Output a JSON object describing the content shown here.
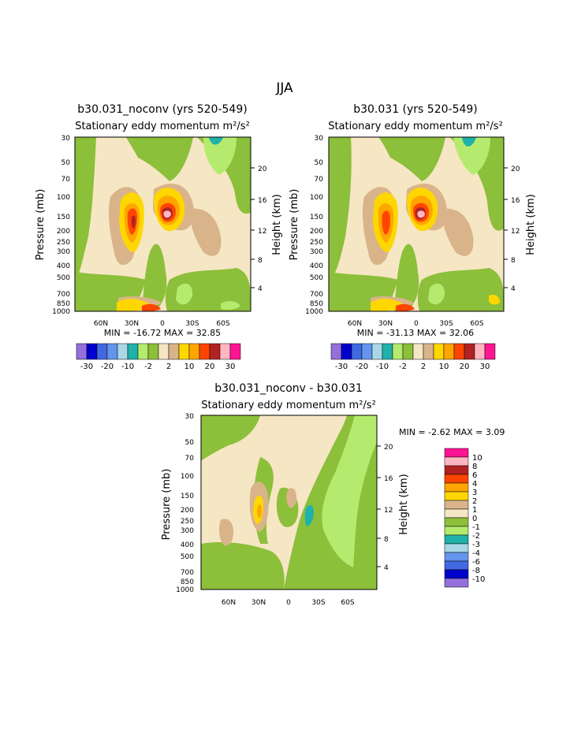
{
  "page_title": "JJA",
  "colors": {
    "fill_palette": {
      "purple": "#9370db",
      "navy": "#0000cd",
      "blue": "#4169e1",
      "lightblue": "#6495ed",
      "paleblue": "#a8d8e8",
      "teal": "#20b2aa",
      "lightgreen": "#b4eb6e",
      "green": "#8cbf3a",
      "cream": "#f5e6c4",
      "tan": "#d9b48a",
      "yellow": "#ffd700",
      "orange": "#ffa500",
      "darkorange": "#ff4500",
      "red": "#b22222",
      "pink": "#ffb6c1",
      "magenta": "#ff1493"
    }
  },
  "chart_data": [
    {
      "type": "contour",
      "title": "b30.031_noconv (yrs 520-549)",
      "subtitle": "Stationary eddy momentum m²/s²",
      "ylabel_left": "Pressure (mb)",
      "ylabel_right": "Height (km)",
      "x_ticks": [
        "60N",
        "30N",
        "0",
        "30S",
        "60S"
      ],
      "y_ticks_pressure": [
        "30",
        "50",
        "70",
        "100",
        "150",
        "200",
        "250",
        "300",
        "400",
        "500",
        "700",
        "850",
        "1000"
      ],
      "y_ticks_height": [
        "20",
        "16",
        "12",
        "8",
        "4"
      ],
      "min_max": "MIN = -16.72 MAX = 32.85",
      "colorbar_labels": [
        "-30",
        "-20",
        "-10",
        "-2",
        "2",
        "10",
        "20",
        "30"
      ]
    },
    {
      "type": "contour",
      "title": "b30.031 (yrs 520-549)",
      "subtitle": "Stationary eddy momentum m²/s²",
      "ylabel_left": "Pressure (mb)",
      "ylabel_right": "Height (km)",
      "x_ticks": [
        "60N",
        "30N",
        "0",
        "30S",
        "60S"
      ],
      "y_ticks_pressure": [
        "30",
        "50",
        "70",
        "100",
        "150",
        "200",
        "250",
        "300",
        "400",
        "500",
        "700",
        "850",
        "1000"
      ],
      "y_ticks_height": [
        "20",
        "16",
        "12",
        "8",
        "4"
      ],
      "min_max": "MIN = -31.13 MAX = 32.06",
      "colorbar_labels": [
        "-30",
        "-20",
        "-10",
        "-2",
        "2",
        "10",
        "20",
        "30"
      ]
    },
    {
      "type": "contour",
      "title": "b30.031_noconv - b30.031",
      "subtitle": "Stationary eddy momentum m²/s²",
      "ylabel_left": "Pressure (mb)",
      "ylabel_right": "Height (km)",
      "x_ticks": [
        "60N",
        "30N",
        "0",
        "30S",
        "60S"
      ],
      "y_ticks_pressure": [
        "30",
        "50",
        "70",
        "100",
        "150",
        "200",
        "250",
        "300",
        "400",
        "500",
        "700",
        "850",
        "1000"
      ],
      "y_ticks_height": [
        "20",
        "16",
        "12",
        "8",
        "4"
      ],
      "min_max": "MIN = -2.62 MAX = 3.09",
      "colorbar_labels": [
        "10",
        "8",
        "6",
        "4",
        "3",
        "2",
        "1",
        "0",
        "-1",
        "-2",
        "-3",
        "-4",
        "-6",
        "-8",
        "-10"
      ]
    }
  ]
}
